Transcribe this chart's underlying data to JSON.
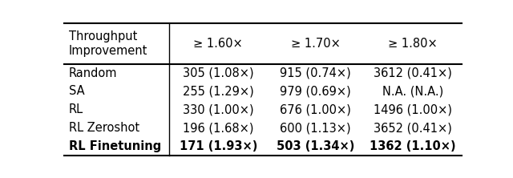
{
  "col_headers": [
    "≥ 1.60×",
    "≥ 1.70×",
    "≥ 1.80×"
  ],
  "row_labels": [
    "Random",
    "SA",
    "RL",
    "RL Zeroshot",
    "RL Finetuning"
  ],
  "cells": [
    [
      "305 (1.08×)",
      "915 (0.74×)",
      "3612 (0.41×)"
    ],
    [
      "255 (1.29×)",
      "979 (0.69×)",
      "N.A. (N.A.)"
    ],
    [
      "330 (1.00×)",
      "676 (1.00×)",
      "1496 (1.00×)"
    ],
    [
      "196 (1.68×)",
      "600 (1.13×)",
      "3652 (0.41×)"
    ],
    [
      "171 (1.93×)",
      "503 (1.34×)",
      "1362 (1.10×)"
    ]
  ],
  "bold_row_idx": 4,
  "background_color": "#ffffff",
  "fontsize": 10.5
}
